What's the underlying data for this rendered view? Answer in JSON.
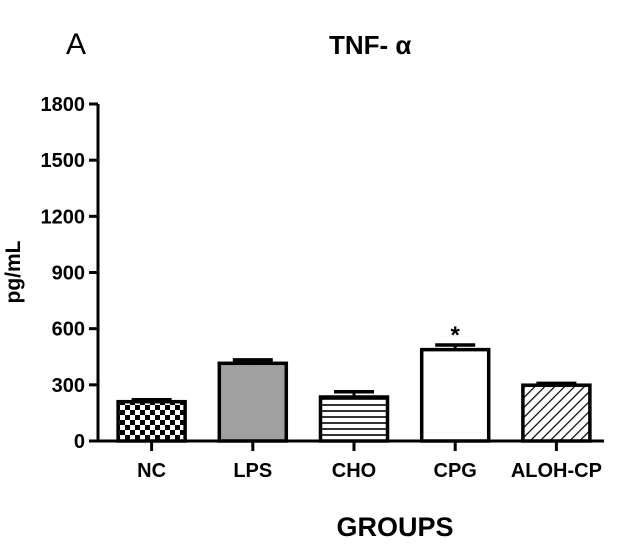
{
  "panel_label": "A",
  "chart_data": {
    "type": "bar",
    "title": "TNF- α",
    "xlabel": "GROUPS",
    "ylabel": "pg/mL",
    "ylim": [
      0,
      1800
    ],
    "yticks": [
      0,
      300,
      600,
      900,
      1200,
      1500,
      1800
    ],
    "categories": [
      "NC",
      "LPS",
      "CHO",
      "CPG",
      "ALOH-CP"
    ],
    "values": [
      210,
      415,
      235,
      488,
      298
    ],
    "errors": [
      10,
      18,
      28,
      25,
      10
    ],
    "fill_patterns": [
      "checkerboard",
      "solid-gray",
      "horizontal-lines",
      "none",
      "diagonal-lines"
    ],
    "annotations": [
      {
        "category": "CPG",
        "text": "*"
      }
    ],
    "grid": false,
    "legend": "none",
    "colors": {
      "bar_stroke": "#000000",
      "solid_fill": "#a0a0a0",
      "background": "#ffffff"
    }
  }
}
